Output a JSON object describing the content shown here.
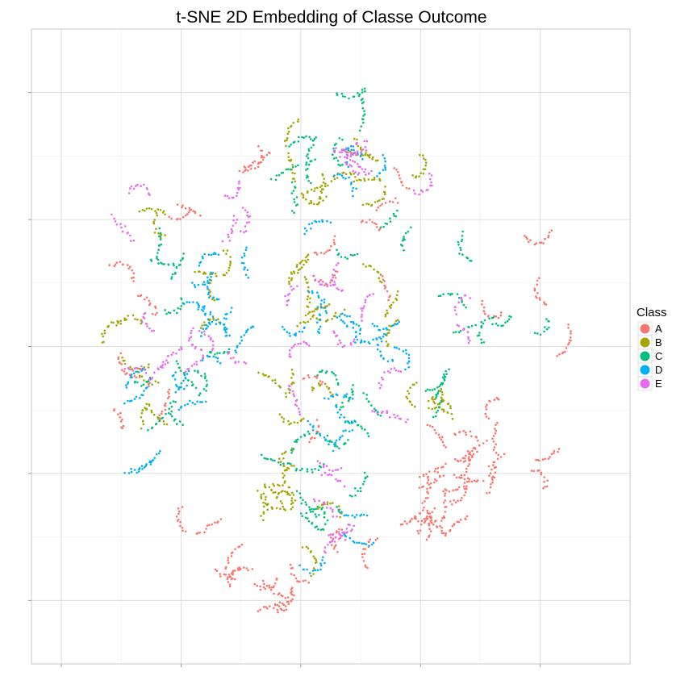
{
  "chart_data": {
    "type": "scatter",
    "title": "t-SNE 2D Embedding of Classe Outcome",
    "xlabel": "",
    "ylabel": "",
    "xlim": [
      -50,
      50
    ],
    "ylim": [
      -50,
      50
    ],
    "x_ticks": [
      -45,
      -25,
      -5,
      15,
      35
    ],
    "y_ticks": [
      -40,
      -20,
      0,
      20,
      40
    ],
    "tick_labels_shown": false,
    "grid": true,
    "legend": {
      "title": "Class",
      "position": "right"
    },
    "series": [
      {
        "name": "A",
        "color": "#F8766D",
        "clusters": [
          {
            "x": -34,
            "y": -15,
            "n": 10
          },
          {
            "x": -20,
            "y": -30,
            "n": 35
          },
          {
            "x": -15,
            "y": -32,
            "n": 20
          },
          {
            "x": -7,
            "y": -37,
            "n": 90
          },
          {
            "x": 17,
            "y": -25,
            "n": 140
          },
          {
            "x": 27,
            "y": -16,
            "n": 140
          },
          {
            "x": 33,
            "y": 11,
            "n": 25
          },
          {
            "x": 35,
            "y": 0,
            "n": 15
          },
          {
            "x": -38,
            "y": 12,
            "n": 15
          },
          {
            "x": -35,
            "y": -4,
            "n": 15
          },
          {
            "x": -12,
            "y": 33,
            "n": 15
          },
          {
            "x": -15,
            "y": 29,
            "n": 15
          },
          {
            "x": 9,
            "y": 16,
            "n": 20
          },
          {
            "x": 12,
            "y": 26,
            "n": 20
          },
          {
            "x": 31,
            "y": 18,
            "n": 15
          },
          {
            "x": 8,
            "y": -33,
            "n": 15
          },
          {
            "x": 0,
            "y": 10,
            "n": 25
          },
          {
            "x": -27,
            "y": 2,
            "n": 25
          },
          {
            "x": -26,
            "y": 18,
            "n": 20
          },
          {
            "x": -3,
            "y": -12,
            "n": 20
          }
        ]
      },
      {
        "name": "B",
        "color": "#A3A500",
        "clusters": [
          {
            "x": -35,
            "y": 1,
            "n": 40
          },
          {
            "x": -26,
            "y": 18,
            "n": 35
          },
          {
            "x": -10,
            "y": -24,
            "n": 70
          },
          {
            "x": -2,
            "y": -28,
            "n": 40
          },
          {
            "x": 3,
            "y": 27,
            "n": 60
          },
          {
            "x": 10,
            "y": 30,
            "n": 40
          },
          {
            "x": 18,
            "y": -8,
            "n": 45
          },
          {
            "x": -5,
            "y": -8,
            "n": 45
          },
          {
            "x": 0,
            "y": 6,
            "n": 45
          },
          {
            "x": -30,
            "y": -8,
            "n": 35
          },
          {
            "x": -8,
            "y": 30,
            "n": 35
          },
          {
            "x": 12,
            "y": 4,
            "n": 35
          },
          {
            "x": -20,
            "y": 10,
            "n": 30
          },
          {
            "x": -6,
            "y": 12,
            "n": 25
          }
        ]
      },
      {
        "name": "C",
        "color": "#00BF7D",
        "clusters": [
          {
            "x": -5,
            "y": 30,
            "n": 60
          },
          {
            "x": 2,
            "y": 33,
            "n": 40
          },
          {
            "x": 0,
            "y": -12,
            "n": 70
          },
          {
            "x": -2,
            "y": -20,
            "n": 50
          },
          {
            "x": -25,
            "y": 12,
            "n": 45
          },
          {
            "x": -25,
            "y": -12,
            "n": 40
          },
          {
            "x": -28,
            "y": -6,
            "n": 30
          },
          {
            "x": 25,
            "y": 8,
            "n": 40
          },
          {
            "x": 30,
            "y": 3,
            "n": 30
          },
          {
            "x": 20,
            "y": -5,
            "n": 35
          },
          {
            "x": -4,
            "y": -30,
            "n": 25
          },
          {
            "x": 10,
            "y": 20,
            "n": 30
          }
        ]
      },
      {
        "name": "D",
        "color": "#00B0F6",
        "clusters": [
          {
            "x": -22,
            "y": 10,
            "n": 45
          },
          {
            "x": -20,
            "y": 5,
            "n": 40
          },
          {
            "x": -28,
            "y": -10,
            "n": 35
          },
          {
            "x": -25,
            "y": -5,
            "n": 30
          },
          {
            "x": -3,
            "y": 5,
            "n": 45
          },
          {
            "x": 7,
            "y": 4,
            "n": 40
          },
          {
            "x": 0,
            "y": -12,
            "n": 45
          },
          {
            "x": 2,
            "y": -26,
            "n": 40
          },
          {
            "x": 6,
            "y": 27,
            "n": 30
          },
          {
            "x": 2,
            "y": 23,
            "n": 25
          },
          {
            "x": -17,
            "y": 0,
            "n": 25
          },
          {
            "x": 13,
            "y": 3,
            "n": 25
          },
          {
            "x": -30,
            "y": -18,
            "n": 25
          }
        ]
      },
      {
        "name": "E",
        "color": "#E76BF3",
        "clusters": [
          {
            "x": -16,
            "y": 20,
            "n": 35
          },
          {
            "x": -25,
            "y": 1,
            "n": 35
          },
          {
            "x": -33,
            "y": 19,
            "n": 25
          },
          {
            "x": -20,
            "y": -3,
            "n": 30
          },
          {
            "x": 7,
            "y": 32,
            "n": 40
          },
          {
            "x": 12,
            "y": 25,
            "n": 25
          },
          {
            "x": 2,
            "y": -28,
            "n": 35
          },
          {
            "x": 3,
            "y": -22,
            "n": 30
          },
          {
            "x": 5,
            "y": -5,
            "n": 25
          },
          {
            "x": 8,
            "y": 8,
            "n": 25
          },
          {
            "x": -6,
            "y": -4,
            "n": 25
          },
          {
            "x": -35,
            "y": -2,
            "n": 20
          },
          {
            "x": 20,
            "y": 5,
            "n": 20
          },
          {
            "x": 15,
            "y": -16,
            "n": 15
          },
          {
            "x": -4,
            "y": 12,
            "n": 20
          }
        ]
      }
    ]
  }
}
